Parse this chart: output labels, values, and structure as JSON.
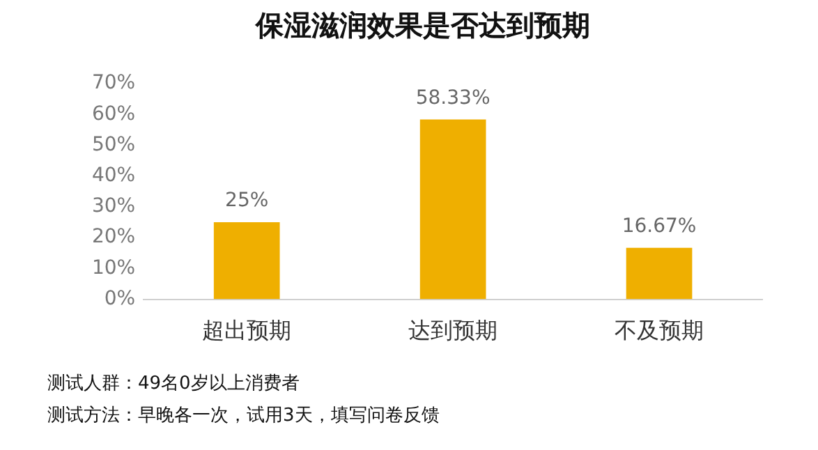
{
  "chart_data": {
    "type": "bar",
    "title": "保湿滋润效果是否达到预期",
    "categories": [
      "超出预期",
      "达到预期",
      "不及预期"
    ],
    "values": [
      25,
      58.33,
      16.67
    ],
    "value_labels": [
      "25%",
      "58.33%",
      "16.67%"
    ],
    "color": "#efaf00",
    "ylim": [
      0,
      70
    ],
    "yticks": [
      {
        "value": 0,
        "label": "0%"
      },
      {
        "value": 10,
        "label": "10%"
      },
      {
        "value": 20,
        "label": "20%"
      },
      {
        "value": 30,
        "label": "30%"
      },
      {
        "value": 40,
        "label": "40%"
      },
      {
        "value": 50,
        "label": "50%"
      },
      {
        "value": 60,
        "label": "60%"
      },
      {
        "value": 70,
        "label": "70%"
      }
    ],
    "grid": false,
    "legend": false,
    "annotations": [
      "测试人群：49名0岁以上消费者",
      "测试方法：早晚各一次，试用3天，填写问卷反馈"
    ]
  }
}
